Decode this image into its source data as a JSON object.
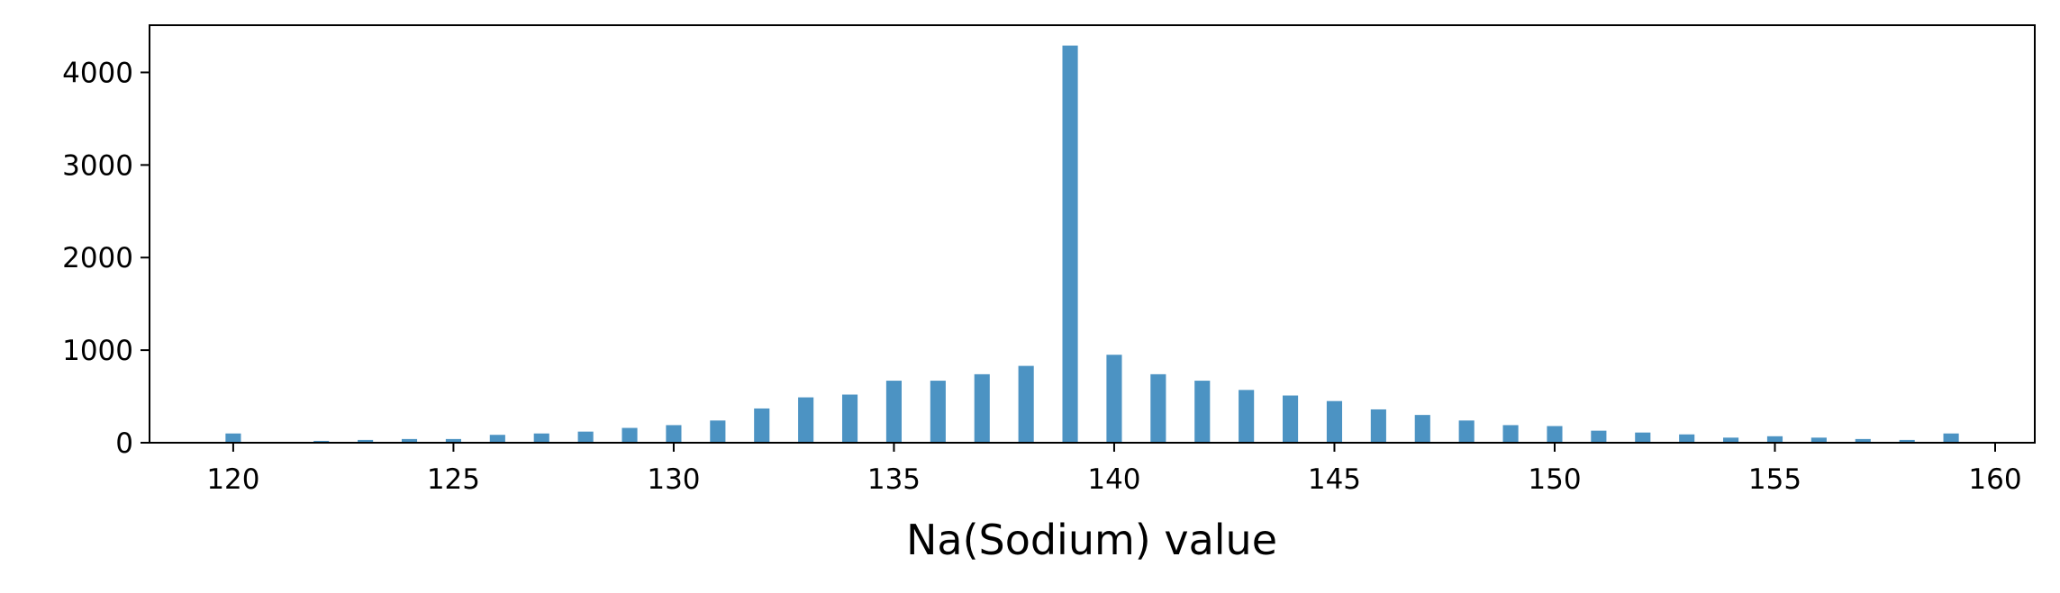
{
  "chart_data": {
    "type": "bar",
    "title": "",
    "xlabel": "Na(Sodium) value",
    "ylabel": "",
    "xlim": [
      118.1,
      160.9
    ],
    "ylim": [
      0,
      4510
    ],
    "x_ticks": [
      120,
      125,
      130,
      135,
      140,
      145,
      150,
      155,
      160
    ],
    "y_ticks": [
      0,
      1000,
      2000,
      3000,
      4000
    ],
    "bar_width": 0.35,
    "bar_color": "#4c93c3",
    "grid": false,
    "legend": "none",
    "x": [
      120,
      122,
      123,
      124,
      125,
      126,
      127,
      128,
      129,
      130,
      131,
      132,
      133,
      134,
      135,
      136,
      137,
      138,
      139,
      140,
      141,
      142,
      143,
      144,
      145,
      146,
      147,
      148,
      149,
      150,
      151,
      152,
      153,
      154,
      155,
      156,
      157,
      158,
      159
    ],
    "values": [
      100,
      20,
      30,
      40,
      40,
      85,
      100,
      120,
      160,
      190,
      240,
      370,
      490,
      520,
      670,
      670,
      740,
      830,
      4290,
      950,
      740,
      670,
      570,
      510,
      450,
      360,
      300,
      240,
      190,
      180,
      130,
      110,
      90,
      55,
      70,
      55,
      40,
      30,
      100
    ]
  }
}
